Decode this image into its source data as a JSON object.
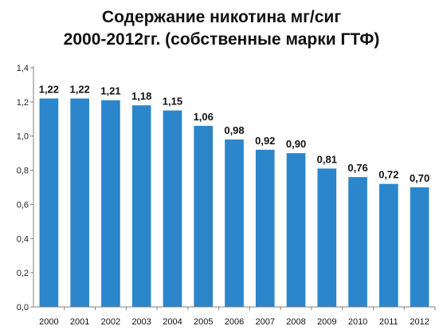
{
  "colors": {
    "bar": "#2B86CB",
    "axis": "#7f7f7f",
    "grid": "#d9d9d9"
  },
  "chart_data": {
    "type": "bar",
    "title_line1": "Содержание никотина мг/сиг",
    "title_line2": "2000-2012гг. (собственные марки ГТФ)",
    "categories": [
      "2000",
      "2001",
      "2002",
      "2003",
      "2004",
      "2005",
      "2006",
      "2007",
      "2008",
      "2009",
      "2010",
      "2011",
      "2012"
    ],
    "values": [
      1.22,
      1.22,
      1.21,
      1.18,
      1.15,
      1.06,
      0.98,
      0.92,
      0.9,
      0.81,
      0.76,
      0.72,
      0.7
    ],
    "value_labels": [
      "1,22",
      "1,22",
      "1,21",
      "1,18",
      "1,15",
      "1,06",
      "0,98",
      "0,92",
      "0,90",
      "0,81",
      "0,76",
      "0,72",
      "0,70"
    ],
    "y_ticks": [
      0,
      0.2,
      0.4,
      0.6,
      0.8,
      1.0,
      1.2,
      1.4
    ],
    "y_tick_labels": [
      "0,0",
      "0,2",
      "0,4",
      "0,6",
      "0,8",
      "1,0",
      "1,2",
      "1,4"
    ],
    "ylim": [
      0,
      1.4
    ],
    "grid": false,
    "legend": "none"
  }
}
